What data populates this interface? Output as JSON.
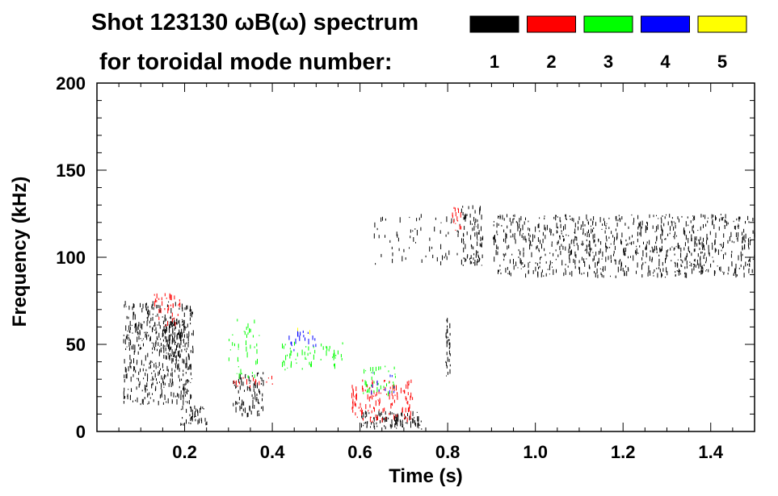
{
  "chart_data": {
    "type": "heatmap",
    "title_line1": "Shot 123130 ωB(ω) spectrum",
    "title_line2": "for toroidal mode number:",
    "xlabel": "Time (s)",
    "ylabel": "Frequency (kHz)",
    "xlim": [
      0.0,
      1.5
    ],
    "ylim": [
      0,
      200
    ],
    "x_ticks": [
      0.2,
      0.4,
      0.6,
      0.8,
      1.0,
      1.2,
      1.4
    ],
    "x_tick_labels": [
      "0.2",
      "0.4",
      "0.6",
      "0.8",
      "1.0",
      "1.2",
      "1.4"
    ],
    "y_ticks": [
      0,
      50,
      100,
      150,
      200
    ],
    "y_tick_labels": [
      "0",
      "50",
      "100",
      "150",
      "200"
    ],
    "legend": {
      "placement": "top-right",
      "entries": [
        {
          "label": "1",
          "color": "#000000"
        },
        {
          "label": "2",
          "color": "#ff0000"
        },
        {
          "label": "3",
          "color": "#00ff00"
        },
        {
          "label": "4",
          "color": "#0000ff"
        },
        {
          "label": "5",
          "color": "#ffff00"
        }
      ]
    },
    "features": [
      {
        "mode": "1",
        "t": [
          0.06,
          0.22
        ],
        "f": [
          15,
          75
        ],
        "density": 0.55
      },
      {
        "mode": "1",
        "t": [
          0.15,
          0.2
        ],
        "f": [
          40,
          65
        ],
        "density": 0.9
      },
      {
        "mode": "1",
        "t": [
          0.19,
          0.25
        ],
        "f": [
          3,
          15
        ],
        "density": 0.7
      },
      {
        "mode": "1",
        "t": [
          0.31,
          0.38
        ],
        "f": [
          8,
          35
        ],
        "density": 0.55
      },
      {
        "mode": "1",
        "t": [
          0.6,
          0.74
        ],
        "f": [
          1,
          12
        ],
        "density": 0.8
      },
      {
        "mode": "1",
        "t": [
          0.795,
          0.805
        ],
        "f": [
          30,
          70
        ],
        "density": 0.9
      },
      {
        "mode": "1",
        "t": [
          0.62,
          0.88
        ],
        "f": [
          95,
          125
        ],
        "density": 0.12
      },
      {
        "mode": "1",
        "t": [
          0.83,
          0.88
        ],
        "f": [
          95,
          130
        ],
        "density": 0.5
      },
      {
        "mode": "1",
        "t": [
          0.9,
          1.5
        ],
        "f": [
          88,
          125
        ],
        "density": 0.45
      },
      {
        "mode": "2",
        "t": [
          0.13,
          0.19
        ],
        "f": [
          60,
          80
        ],
        "density": 0.35
      },
      {
        "mode": "2",
        "t": [
          0.3,
          0.4
        ],
        "f": [
          25,
          32
        ],
        "density": 0.25
      },
      {
        "mode": "2",
        "t": [
          0.58,
          0.72
        ],
        "f": [
          5,
          30
        ],
        "density": 0.45
      },
      {
        "mode": "2",
        "t": [
          0.81,
          0.83
        ],
        "f": [
          115,
          130
        ],
        "density": 0.6
      },
      {
        "mode": "3",
        "t": [
          0.3,
          0.37
        ],
        "f": [
          30,
          65
        ],
        "density": 0.2
      },
      {
        "mode": "3",
        "t": [
          0.42,
          0.56
        ],
        "f": [
          35,
          52
        ],
        "density": 0.3
      },
      {
        "mode": "3",
        "t": [
          0.6,
          0.68
        ],
        "f": [
          20,
          38
        ],
        "density": 0.3
      },
      {
        "mode": "4",
        "t": [
          0.43,
          0.5
        ],
        "f": [
          45,
          58
        ],
        "density": 0.25
      },
      {
        "mode": "4",
        "t": [
          0.62,
          0.68
        ],
        "f": [
          20,
          35
        ],
        "density": 0.15
      },
      {
        "mode": "5",
        "t": [
          0.45,
          0.5
        ],
        "f": [
          55,
          60
        ],
        "density": 0.1
      }
    ]
  }
}
